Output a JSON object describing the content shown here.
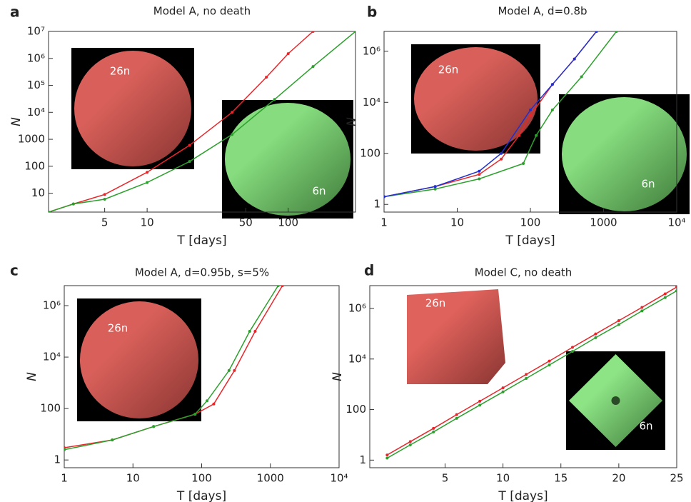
{
  "chart_data": [
    {
      "type": "line",
      "panel": "a",
      "title": "Model A, no death",
      "xlabel": "T [days]",
      "ylabel": "N",
      "xscale": "log",
      "yscale": "log",
      "xlim": [
        2,
        300
      ],
      "ylim": [
        2,
        10000000
      ],
      "xticks": [
        5,
        10,
        50,
        100
      ],
      "yticks": [
        10,
        100,
        1000,
        {
          "value": 10000,
          "label": "10⁴"
        },
        {
          "value": 100000,
          "label": "10⁵"
        },
        {
          "value": 1000000,
          "label": "10⁶"
        },
        {
          "value": 10000000,
          "label": "10⁷"
        }
      ],
      "series": [
        {
          "color": "#e8262a",
          "x": [
            2,
            3,
            5,
            10,
            20,
            40,
            70,
            100,
            150
          ],
          "values": [
            2,
            4,
            9,
            60,
            600,
            10000,
            200000,
            1500000,
            10000000
          ]
        },
        {
          "color": "#2ca02c",
          "x": [
            2,
            3,
            5,
            10,
            20,
            40,
            80,
            150,
            300
          ],
          "values": [
            2,
            4,
            6,
            25,
            150,
            1500,
            30000,
            500000,
            10000000
          ]
        }
      ],
      "insets": [
        {
          "label": "26n"
        },
        {
          "label": "6n"
        }
      ]
    },
    {
      "type": "line",
      "panel": "b",
      "title": "Model A, d=0.8b",
      "xlabel": "T [days]",
      "ylabel": "N",
      "xscale": "log",
      "yscale": "log",
      "xlim": [
        1,
        10000
      ],
      "ylim": [
        0.5,
        6000000
      ],
      "xticks": [
        1,
        10,
        100,
        1000,
        {
          "value": 10000,
          "label": "10⁴"
        }
      ],
      "yticks": [
        1,
        100,
        {
          "value": 10000,
          "label": "10⁴"
        },
        {
          "value": 1000000,
          "label": "10⁶"
        }
      ],
      "series": [
        {
          "color": "#e8262a",
          "x": [
            1,
            5,
            20,
            40,
            70,
            100,
            200,
            400,
            800
          ],
          "values": [
            2,
            5,
            15,
            60,
            500,
            3000,
            50000,
            500000,
            6000000
          ]
        },
        {
          "color": "#2ca02c",
          "x": [
            1,
            5,
            20,
            80,
            120,
            200,
            500,
            1500
          ],
          "values": [
            2,
            4,
            10,
            40,
            500,
            5000,
            100000,
            6000000
          ]
        },
        {
          "color": "#2030d0",
          "x": [
            1,
            5,
            20,
            40,
            100,
            200,
            400,
            800
          ],
          "values": [
            2,
            5,
            20,
            100,
            5000,
            50000,
            500000,
            6000000
          ]
        }
      ],
      "insets": [
        {
          "label": "26n"
        },
        {
          "label": "6n"
        }
      ]
    },
    {
      "type": "line",
      "panel": "c",
      "title": "Model A, d=0.95b, s=5%",
      "xlabel": "T [days]",
      "ylabel": "N",
      "xscale": "log",
      "yscale": "log",
      "xlim": [
        1,
        10000
      ],
      "ylim": [
        0.5,
        6000000
      ],
      "xticks": [
        1,
        10,
        100,
        1000,
        {
          "value": 10000,
          "label": "10⁴"
        }
      ],
      "yticks": [
        1,
        100,
        {
          "value": 10000,
          "label": "10⁴"
        },
        {
          "value": 1000000,
          "label": "10⁶"
        }
      ],
      "series": [
        {
          "color": "#e8262a",
          "x": [
            1,
            5,
            20,
            80,
            150,
            300,
            600,
            1500
          ],
          "values": [
            3,
            6,
            20,
            60,
            150,
            3000,
            100000,
            6000000
          ]
        },
        {
          "color": "#2ca02c",
          "x": [
            1,
            5,
            20,
            80,
            120,
            250,
            500,
            1300
          ],
          "values": [
            2.5,
            6,
            20,
            60,
            200,
            3000,
            100000,
            6000000
          ]
        }
      ],
      "insets": [
        {
          "label": "26n"
        }
      ]
    },
    {
      "type": "line",
      "panel": "d",
      "title": "Model C, no death",
      "xlabel": "T [days]",
      "ylabel": "N",
      "xscale": "linear",
      "yscale": "log",
      "xlim": [
        -1.5,
        25
      ],
      "ylim": [
        0.5,
        8000000
      ],
      "xticks": [
        5,
        10,
        15,
        20,
        25
      ],
      "yticks": [
        1,
        100,
        {
          "value": 10000,
          "label": "10⁴"
        },
        {
          "value": 1000000,
          "label": "10⁶"
        }
      ],
      "series": [
        {
          "color": "#e8262a",
          "x": [
            0,
            2,
            4,
            6,
            8,
            10,
            12,
            14,
            16,
            18,
            20,
            22,
            24,
            25
          ],
          "values": [
            1.6,
            5.4,
            18,
            63,
            214,
            724,
            2450,
            8300,
            29000,
            98000,
            330000,
            1100000,
            3800000,
            7000000
          ]
        },
        {
          "color": "#2ca02c",
          "x": [
            0,
            2,
            4,
            6,
            8,
            10,
            12,
            14,
            16,
            18,
            20,
            22,
            24,
            25
          ],
          "values": [
            1.2,
            4,
            13,
            45,
            150,
            500,
            1700,
            5800,
            20000,
            70000,
            230000,
            800000,
            2700000,
            5000000
          ]
        }
      ],
      "insets": [
        {
          "label": "26n"
        },
        {
          "label": "6n"
        }
      ]
    }
  ]
}
